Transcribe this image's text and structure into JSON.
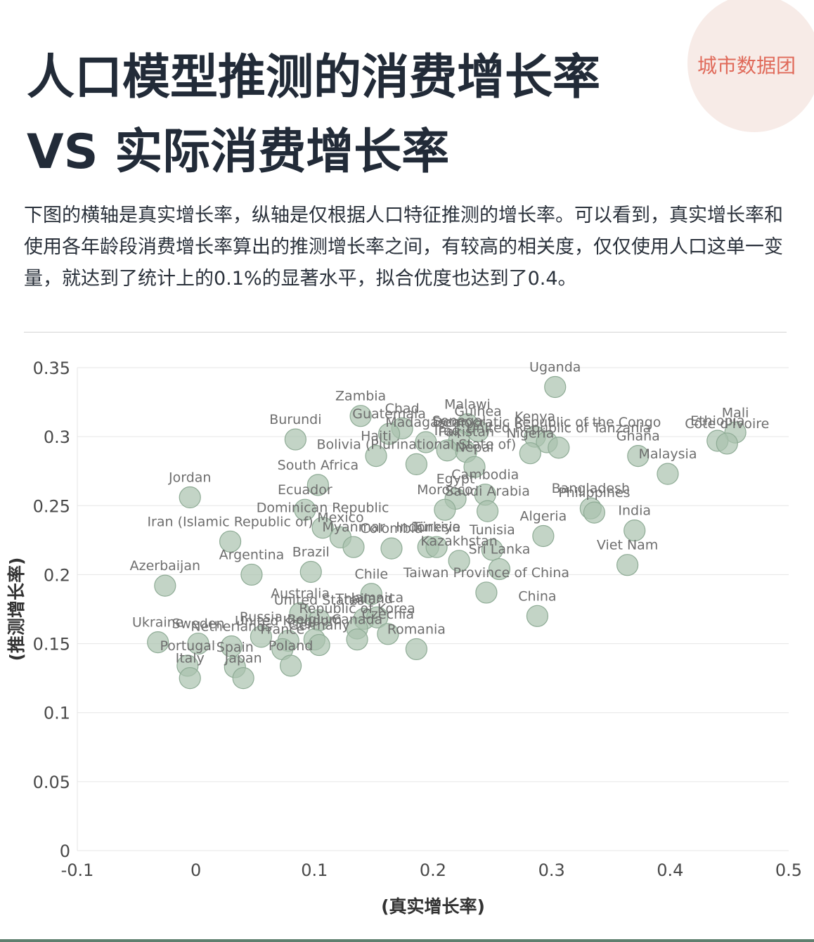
{
  "header": {
    "title_line1": "人口模型推测的消费增长率",
    "title_line2": "VS 实际消费增长率",
    "brand": "城市数据团"
  },
  "description": "下图的横轴是真实增长率，纵轴是仅根据人口特征推测的增长率。可以看到，真实增长率和使用各年龄段消费增长率算出的推测增长率之间，有较高的相关度，仅仅使用人口这单一变量，就达到了统计上的0.1%的显著水平，拟合优度也达到了0.4。",
  "colors": {
    "bubble_fill": "#a9c2ae",
    "bubble_stroke": "#8eab95",
    "label": "#6e6e6e",
    "axis_text": "#4a4a4a",
    "grid": "#e6e6e6",
    "logo": "#e06a5a"
  },
  "chart_data": {
    "type": "scatter",
    "xlabel": "(真实增长率)",
    "ylabel": "(推测增长率)",
    "xlim": [
      -0.1,
      0.5
    ],
    "ylim": [
      0,
      0.35
    ],
    "xticks": [
      -0.1,
      0,
      0.1,
      0.2,
      0.3,
      0.4,
      0.5
    ],
    "xtick_labels": [
      "-0.1",
      "0",
      "0.1",
      "0.2",
      "0.3",
      "0.4",
      "0.5"
    ],
    "yticks": [
      0,
      0.05,
      0.1,
      0.15,
      0.2,
      0.25,
      0.3,
      0.35
    ],
    "ytick_labels": [
      "0",
      "0.05",
      "0.1",
      "0.15",
      "0.2",
      "0.25",
      "0.3",
      "0.35"
    ],
    "grid": "horizontal",
    "points": [
      {
        "label": "Uganda",
        "x": 0.303,
        "y": 0.336
      },
      {
        "label": "Zambia",
        "x": 0.139,
        "y": 0.315
      },
      {
        "label": "Malawi",
        "x": 0.229,
        "y": 0.309
      },
      {
        "label": "Chad",
        "x": 0.174,
        "y": 0.306
      },
      {
        "label": "Guinea",
        "x": 0.238,
        "y": 0.304
      },
      {
        "label": "Burundi",
        "x": 0.084,
        "y": 0.298
      },
      {
        "label": "Guatemala",
        "x": 0.163,
        "y": 0.302
      },
      {
        "label": "Madagascar",
        "x": 0.194,
        "y": 0.296
      },
      {
        "label": "Senegal",
        "x": 0.222,
        "y": 0.297
      },
      {
        "label": "Iraq",
        "x": 0.212,
        "y": 0.29
      },
      {
        "label": "Pakistan",
        "x": 0.228,
        "y": 0.289
      },
      {
        "label": "Kenya",
        "x": 0.286,
        "y": 0.3
      },
      {
        "label": "Democratic Republic of the Congo",
        "x": 0.296,
        "y": 0.296
      },
      {
        "label": "United Republic of Tanzania",
        "x": 0.306,
        "y": 0.292
      },
      {
        "label": "Nigeria",
        "x": 0.282,
        "y": 0.288
      },
      {
        "label": "Mali",
        "x": 0.455,
        "y": 0.303
      },
      {
        "label": "Ethiopia",
        "x": 0.44,
        "y": 0.297
      },
      {
        "label": "Côte d'Ivoire",
        "x": 0.448,
        "y": 0.295
      },
      {
        "label": "Ghana",
        "x": 0.373,
        "y": 0.286
      },
      {
        "label": "Haiti",
        "x": 0.152,
        "y": 0.286
      },
      {
        "label": "Jordan",
        "x": -0.005,
        "y": 0.256
      },
      {
        "label": "South Africa",
        "x": 0.103,
        "y": 0.265
      },
      {
        "label": "Bolivia (Plurinational State of)",
        "x": 0.186,
        "y": 0.28
      },
      {
        "label": "Nepal",
        "x": 0.235,
        "y": 0.278
      },
      {
        "label": "Egypt",
        "x": 0.219,
        "y": 0.255
      },
      {
        "label": "Cambodia",
        "x": 0.244,
        "y": 0.258
      },
      {
        "label": "Bangladesh",
        "x": 0.333,
        "y": 0.248
      },
      {
        "label": "Philippines",
        "x": 0.336,
        "y": 0.245
      },
      {
        "label": "India",
        "x": 0.37,
        "y": 0.232
      },
      {
        "label": "Malaysia",
        "x": 0.398,
        "y": 0.273
      },
      {
        "label": "Iran (Islamic Republic of)",
        "x": 0.029,
        "y": 0.224
      },
      {
        "label": "Ecuador",
        "x": 0.092,
        "y": 0.247
      },
      {
        "label": "Dominican Republic",
        "x": 0.107,
        "y": 0.234
      },
      {
        "label": "Mexico",
        "x": 0.122,
        "y": 0.227
      },
      {
        "label": "Myanmar",
        "x": 0.133,
        "y": 0.22
      },
      {
        "label": "Morocco",
        "x": 0.21,
        "y": 0.247
      },
      {
        "label": "Saudi Arabia",
        "x": 0.246,
        "y": 0.246
      },
      {
        "label": "Algeria",
        "x": 0.293,
        "y": 0.228
      },
      {
        "label": "Colombia",
        "x": 0.165,
        "y": 0.219
      },
      {
        "label": "Indonesia",
        "x": 0.196,
        "y": 0.22
      },
      {
        "label": "Türkiye",
        "x": 0.203,
        "y": 0.22
      },
      {
        "label": "Tunisia",
        "x": 0.25,
        "y": 0.218
      },
      {
        "label": "Kazakhstan",
        "x": 0.222,
        "y": 0.21
      },
      {
        "label": "Sri Lanka",
        "x": 0.256,
        "y": 0.204
      },
      {
        "label": "Viet Nam",
        "x": 0.364,
        "y": 0.207
      },
      {
        "label": "Azerbaijan",
        "x": -0.026,
        "y": 0.192
      },
      {
        "label": "Argentina",
        "x": 0.047,
        "y": 0.2
      },
      {
        "label": "Brazil",
        "x": 0.097,
        "y": 0.202
      },
      {
        "label": "Chile",
        "x": 0.148,
        "y": 0.186
      },
      {
        "label": "China",
        "x": 0.288,
        "y": 0.17
      },
      {
        "label": "Australia",
        "x": 0.088,
        "y": 0.172
      },
      {
        "label": "United States",
        "x": 0.104,
        "y": 0.167
      },
      {
        "label": "Thailand",
        "x": 0.142,
        "y": 0.168
      },
      {
        "label": "Jamaica",
        "x": 0.153,
        "y": 0.169
      },
      {
        "label": "Taiwan Province of China",
        "x": 0.245,
        "y": 0.187
      },
      {
        "label": "Romania",
        "x": 0.186,
        "y": 0.146
      },
      {
        "label": "Ukraine",
        "x": -0.032,
        "y": 0.151
      },
      {
        "label": "Sweden",
        "x": 0.002,
        "y": 0.15
      },
      {
        "label": "Russia",
        "x": 0.055,
        "y": 0.155
      },
      {
        "label": "United Kingdom",
        "x": 0.078,
        "y": 0.152
      },
      {
        "label": "Netherlands",
        "x": 0.03,
        "y": 0.148
      },
      {
        "label": "France",
        "x": 0.073,
        "y": 0.146
      },
      {
        "label": "Belgium",
        "x": 0.1,
        "y": 0.153
      },
      {
        "label": "Republic of Korea",
        "x": 0.136,
        "y": 0.161
      },
      {
        "label": "Czechia",
        "x": 0.162,
        "y": 0.157
      },
      {
        "label": "Portugal",
        "x": -0.007,
        "y": 0.134
      },
      {
        "label": "Spain",
        "x": 0.033,
        "y": 0.133
      },
      {
        "label": "Germany",
        "x": 0.104,
        "y": 0.149
      },
      {
        "label": "Italy",
        "x": -0.005,
        "y": 0.125
      },
      {
        "label": "Japan",
        "x": 0.04,
        "y": 0.125
      },
      {
        "label": "Poland",
        "x": 0.08,
        "y": 0.134
      },
      {
        "label": "Canada",
        "x": 0.136,
        "y": 0.153
      }
    ]
  }
}
